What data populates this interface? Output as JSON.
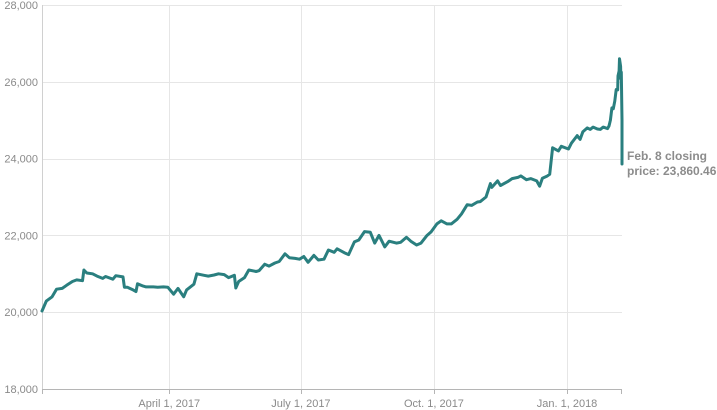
{
  "chart_data": {
    "type": "line",
    "title": "",
    "xlabel": "",
    "ylabel": "",
    "ylim": [
      18000,
      28000
    ],
    "xlim": [
      "2017-01-03",
      "2018-02-08"
    ],
    "grid": true,
    "y_ticks": [
      {
        "value": 18000,
        "label": "18,000"
      },
      {
        "value": 20000,
        "label": "20,000"
      },
      {
        "value": 22000,
        "label": "22,000"
      },
      {
        "value": 24000,
        "label": "24,000"
      },
      {
        "value": 26000,
        "label": "26,000"
      },
      {
        "value": 28000,
        "label": "28,000"
      }
    ],
    "x_ticks": [
      {
        "date": "2017-04-01",
        "label": "April 1, 2017"
      },
      {
        "date": "2017-07-01",
        "label": "July 1, 2017"
      },
      {
        "date": "2017-10-01",
        "label": "Oct. 1, 2017"
      },
      {
        "date": "2018-01-01",
        "label": "Jan. 1, 2018"
      }
    ],
    "series": [
      {
        "color": "#2a7f7f",
        "points": [
          [
            "2017-01-03",
            20030
          ],
          [
            "2017-01-06",
            20290
          ],
          [
            "2017-01-10",
            20400
          ],
          [
            "2017-01-13",
            20600
          ],
          [
            "2017-01-17",
            20620
          ],
          [
            "2017-01-20",
            20700
          ],
          [
            "2017-01-24",
            20800
          ],
          [
            "2017-01-27",
            20840
          ],
          [
            "2017-01-31",
            20820
          ],
          [
            "2017-02-01",
            21100
          ],
          [
            "2017-02-03",
            21020
          ],
          [
            "2017-02-07",
            21000
          ],
          [
            "2017-02-10",
            20940
          ],
          [
            "2017-02-14",
            20880
          ],
          [
            "2017-02-16",
            20930
          ],
          [
            "2017-02-21",
            20860
          ],
          [
            "2017-02-23",
            20950
          ],
          [
            "2017-02-28",
            20920
          ],
          [
            "2017-03-01",
            20650
          ],
          [
            "2017-03-03",
            20650
          ],
          [
            "2017-03-07",
            20580
          ],
          [
            "2017-03-09",
            20540
          ],
          [
            "2017-03-10",
            20740
          ],
          [
            "2017-03-14",
            20680
          ],
          [
            "2017-03-16",
            20660
          ],
          [
            "2017-03-21",
            20660
          ],
          [
            "2017-03-24",
            20650
          ],
          [
            "2017-03-28",
            20660
          ],
          [
            "2017-03-31",
            20650
          ],
          [
            "2017-04-04",
            20470
          ],
          [
            "2017-04-07",
            20620
          ],
          [
            "2017-04-11",
            20400
          ],
          [
            "2017-04-13",
            20580
          ],
          [
            "2017-04-18",
            20730
          ],
          [
            "2017-04-20",
            21000
          ],
          [
            "2017-04-25",
            20960
          ],
          [
            "2017-04-28",
            20940
          ],
          [
            "2017-05-02",
            20970
          ],
          [
            "2017-05-05",
            21000
          ],
          [
            "2017-05-09",
            20980
          ],
          [
            "2017-05-12",
            20900
          ],
          [
            "2017-05-16",
            20960
          ],
          [
            "2017-05-17",
            20630
          ],
          [
            "2017-05-19",
            20800
          ],
          [
            "2017-05-23",
            20900
          ],
          [
            "2017-05-26",
            21100
          ],
          [
            "2017-05-31",
            21060
          ],
          [
            "2017-06-02",
            21080
          ],
          [
            "2017-06-06",
            21250
          ],
          [
            "2017-06-09",
            21200
          ],
          [
            "2017-06-13",
            21280
          ],
          [
            "2017-06-16",
            21320
          ],
          [
            "2017-06-20",
            21520
          ],
          [
            "2017-06-23",
            21420
          ],
          [
            "2017-06-27",
            21400
          ],
          [
            "2017-06-30",
            21380
          ],
          [
            "2017-07-03",
            21450
          ],
          [
            "2017-07-06",
            21300
          ],
          [
            "2017-07-10",
            21480
          ],
          [
            "2017-07-13",
            21360
          ],
          [
            "2017-07-17",
            21380
          ],
          [
            "2017-07-20",
            21620
          ],
          [
            "2017-07-24",
            21560
          ],
          [
            "2017-07-26",
            21650
          ],
          [
            "2017-07-31",
            21550
          ],
          [
            "2017-08-03",
            21500
          ],
          [
            "2017-08-07",
            21830
          ],
          [
            "2017-08-10",
            21880
          ],
          [
            "2017-08-14",
            22100
          ],
          [
            "2017-08-18",
            22080
          ],
          [
            "2017-08-21",
            21800
          ],
          [
            "2017-08-24",
            22000
          ],
          [
            "2017-08-28",
            21700
          ],
          [
            "2017-08-31",
            21850
          ],
          [
            "2017-09-05",
            21800
          ],
          [
            "2017-09-08",
            21820
          ],
          [
            "2017-09-12",
            21950
          ],
          [
            "2017-09-15",
            21850
          ],
          [
            "2017-09-19",
            21750
          ],
          [
            "2017-09-22",
            21800
          ],
          [
            "2017-09-26",
            21990
          ],
          [
            "2017-09-29",
            22090
          ],
          [
            "2017-10-03",
            22300
          ],
          [
            "2017-10-06",
            22380
          ],
          [
            "2017-10-10",
            22300
          ],
          [
            "2017-10-13",
            22300
          ],
          [
            "2017-10-17",
            22420
          ],
          [
            "2017-10-20",
            22560
          ],
          [
            "2017-10-24",
            22800
          ],
          [
            "2017-10-27",
            22780
          ],
          [
            "2017-10-31",
            22870
          ],
          [
            "2017-11-02",
            22880
          ],
          [
            "2017-11-06",
            23000
          ],
          [
            "2017-11-09",
            23350
          ],
          [
            "2017-11-10",
            23250
          ],
          [
            "2017-11-14",
            23420
          ],
          [
            "2017-11-16",
            23300
          ],
          [
            "2017-11-21",
            23400
          ],
          [
            "2017-11-24",
            23480
          ],
          [
            "2017-11-28",
            23510
          ],
          [
            "2017-11-30",
            23550
          ],
          [
            "2017-12-04",
            23450
          ],
          [
            "2017-12-07",
            23480
          ],
          [
            "2017-12-11",
            23420
          ],
          [
            "2017-12-13",
            23280
          ],
          [
            "2017-12-15",
            23490
          ],
          [
            "2017-12-18",
            23540
          ],
          [
            "2017-12-20",
            23590
          ],
          [
            "2017-12-22",
            24280
          ],
          [
            "2017-12-26",
            24200
          ],
          [
            "2017-12-28",
            24320
          ],
          [
            "2018-01-02",
            24250
          ],
          [
            "2018-01-04",
            24400
          ],
          [
            "2018-01-08",
            24600
          ],
          [
            "2018-01-10",
            24500
          ],
          [
            "2018-01-12",
            24700
          ],
          [
            "2018-01-15",
            24800
          ],
          [
            "2018-01-17",
            24760
          ],
          [
            "2018-01-19",
            24820
          ],
          [
            "2018-01-22",
            24770
          ],
          [
            "2018-01-24",
            24760
          ],
          [
            "2018-01-26",
            24820
          ],
          [
            "2018-01-29",
            24780
          ],
          [
            "2018-01-30",
            24850
          ],
          [
            "2018-01-31",
            25000
          ],
          [
            "2018-02-01",
            25320
          ],
          [
            "2018-02-02",
            25300
          ],
          [
            "2018-02-03",
            25500
          ],
          [
            "2018-02-04",
            25800
          ],
          [
            "2018-02-05",
            25790
          ],
          [
            "2018-02-05",
            26150
          ],
          [
            "2018-02-06",
            26280
          ],
          [
            "2018-02-06",
            26600
          ],
          [
            "2018-02-07",
            26400
          ],
          [
            "2018-02-07",
            26080
          ],
          [
            "2018-02-07",
            26250
          ],
          [
            "2018-02-08",
            25000
          ],
          [
            "2018-02-08",
            24350
          ],
          [
            "2018-02-08",
            24950
          ],
          [
            "2018-02-08",
            24800
          ],
          [
            "2018-02-08",
            23860
          ]
        ]
      }
    ],
    "annotations": [
      {
        "date": "2018-02-08",
        "value": 23860.46,
        "lines": [
          "Feb. 8 closing",
          "price: 23,860.46"
        ]
      }
    ]
  }
}
